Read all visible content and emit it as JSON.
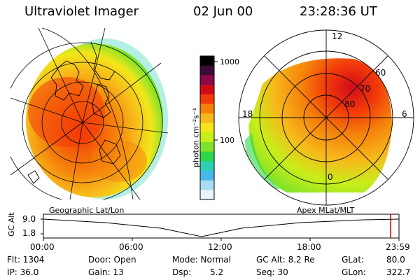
{
  "header": {
    "instrument": "Ultraviolet Imager",
    "date": "02 Jun 00",
    "time": "23:28:36 UT"
  },
  "colorbar": {
    "label": "photon cm⁻²s⁻¹",
    "ticks": [
      "1000",
      "100"
    ],
    "colors": [
      "#000000",
      "#3a0a3a",
      "#8a0a4a",
      "#d10a1a",
      "#f23a0a",
      "#f5800a",
      "#f7b81a",
      "#f2e61a",
      "#c8ee1a",
      "#7ee22a",
      "#2ed64a",
      "#2ad0b0",
      "#48b8e8",
      "#a8dcee",
      "#e8f4f8"
    ]
  },
  "left_panel": {
    "caption": "Geographic Lat/Lon"
  },
  "right_panel": {
    "caption": "Apex MLat/MLT",
    "mlt_labels": {
      "top": "12",
      "left": "18",
      "right": "6",
      "bottom": "0"
    },
    "lat_labels": [
      "60",
      "70",
      "80"
    ]
  },
  "altitude_plot": {
    "ylabel": "GC Alt",
    "yticks": [
      "9.0",
      "1.8"
    ],
    "xticks": [
      "00:00",
      "06:00",
      "12:00",
      "18:00",
      "23:59"
    ],
    "marker_color": "#cc0000"
  },
  "status": {
    "flt": "Flt: 1304",
    "ip": "IP: 36.0",
    "door": "Door: Open",
    "gain": "Gain: 13",
    "mode": "Mode: Normal",
    "dsp": "Dsp:",
    "dsp_value": "5.2",
    "gcalt": "GC Alt: 8.2 Re",
    "seq": "Seq: 30",
    "glat": "GLat:",
    "glat_value": "80.0",
    "glon": "GLon:",
    "glon_value": "322.7"
  }
}
